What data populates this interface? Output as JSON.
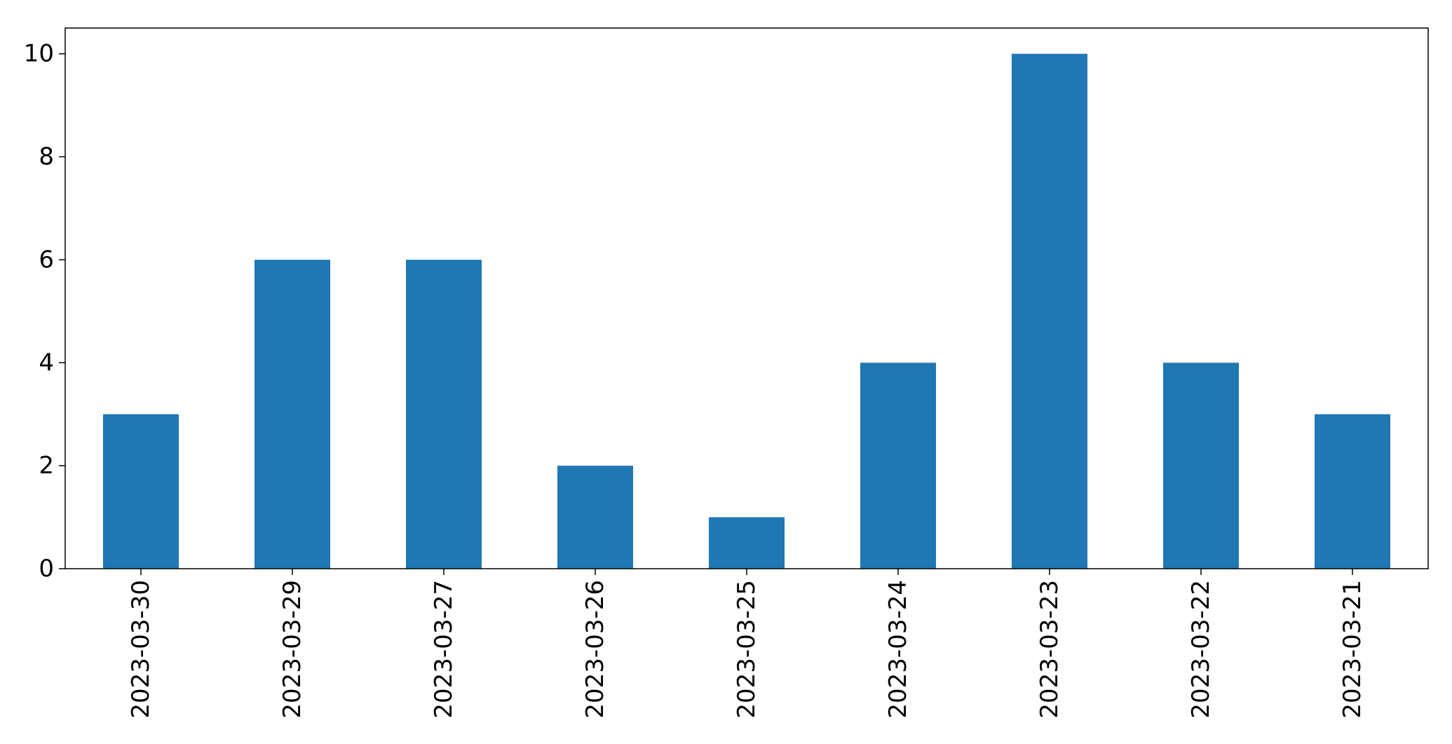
{
  "chart_data": {
    "type": "bar",
    "title": "",
    "xlabel": "",
    "ylabel": "",
    "categories": [
      "2023-03-30",
      "2023-03-29",
      "2023-03-27",
      "2023-03-26",
      "2023-03-25",
      "2023-03-24",
      "2023-03-23",
      "2023-03-22",
      "2023-03-21"
    ],
    "values": [
      3,
      6,
      6,
      2,
      1,
      4,
      10,
      4,
      3
    ],
    "ylim": [
      0,
      10.5
    ],
    "yticks": [
      0,
      2,
      4,
      6,
      8,
      10
    ],
    "x_tick_rotation": "vertical",
    "grid": false,
    "legend": "none",
    "bar_color": "#1f77b4"
  }
}
